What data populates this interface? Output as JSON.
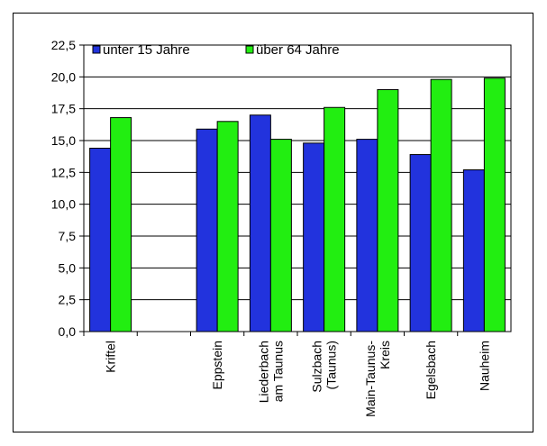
{
  "chart_data": {
    "type": "bar",
    "ylim": [
      0,
      22.5
    ],
    "yticks": [
      "0,0",
      "2,5",
      "5,0",
      "7,5",
      "10,0",
      "12,5",
      "15,0",
      "17,5",
      "20,0",
      "22,5"
    ],
    "grid": true,
    "legend_position": "top-left",
    "categories": [
      [
        "Kriftel"
      ],
      [],
      [
        "Eppstein"
      ],
      [
        "Liederbach",
        "am Taunus"
      ],
      [
        "Sulzbach",
        "(Taunus)"
      ],
      [
        "Main-Taunus-",
        "Kreis"
      ],
      [
        "Egelsbach"
      ],
      [
        "Nauheim"
      ]
    ],
    "series": [
      {
        "name": "unter 15 Jahre",
        "color": "#2233dd",
        "values": [
          14.4,
          null,
          15.9,
          17.0,
          14.8,
          15.1,
          13.9,
          12.7
        ]
      },
      {
        "name": "über 64 Jahre",
        "color": "#22ee11",
        "values": [
          16.8,
          null,
          16.5,
          15.1,
          17.6,
          19.0,
          19.8,
          19.9
        ]
      }
    ]
  }
}
